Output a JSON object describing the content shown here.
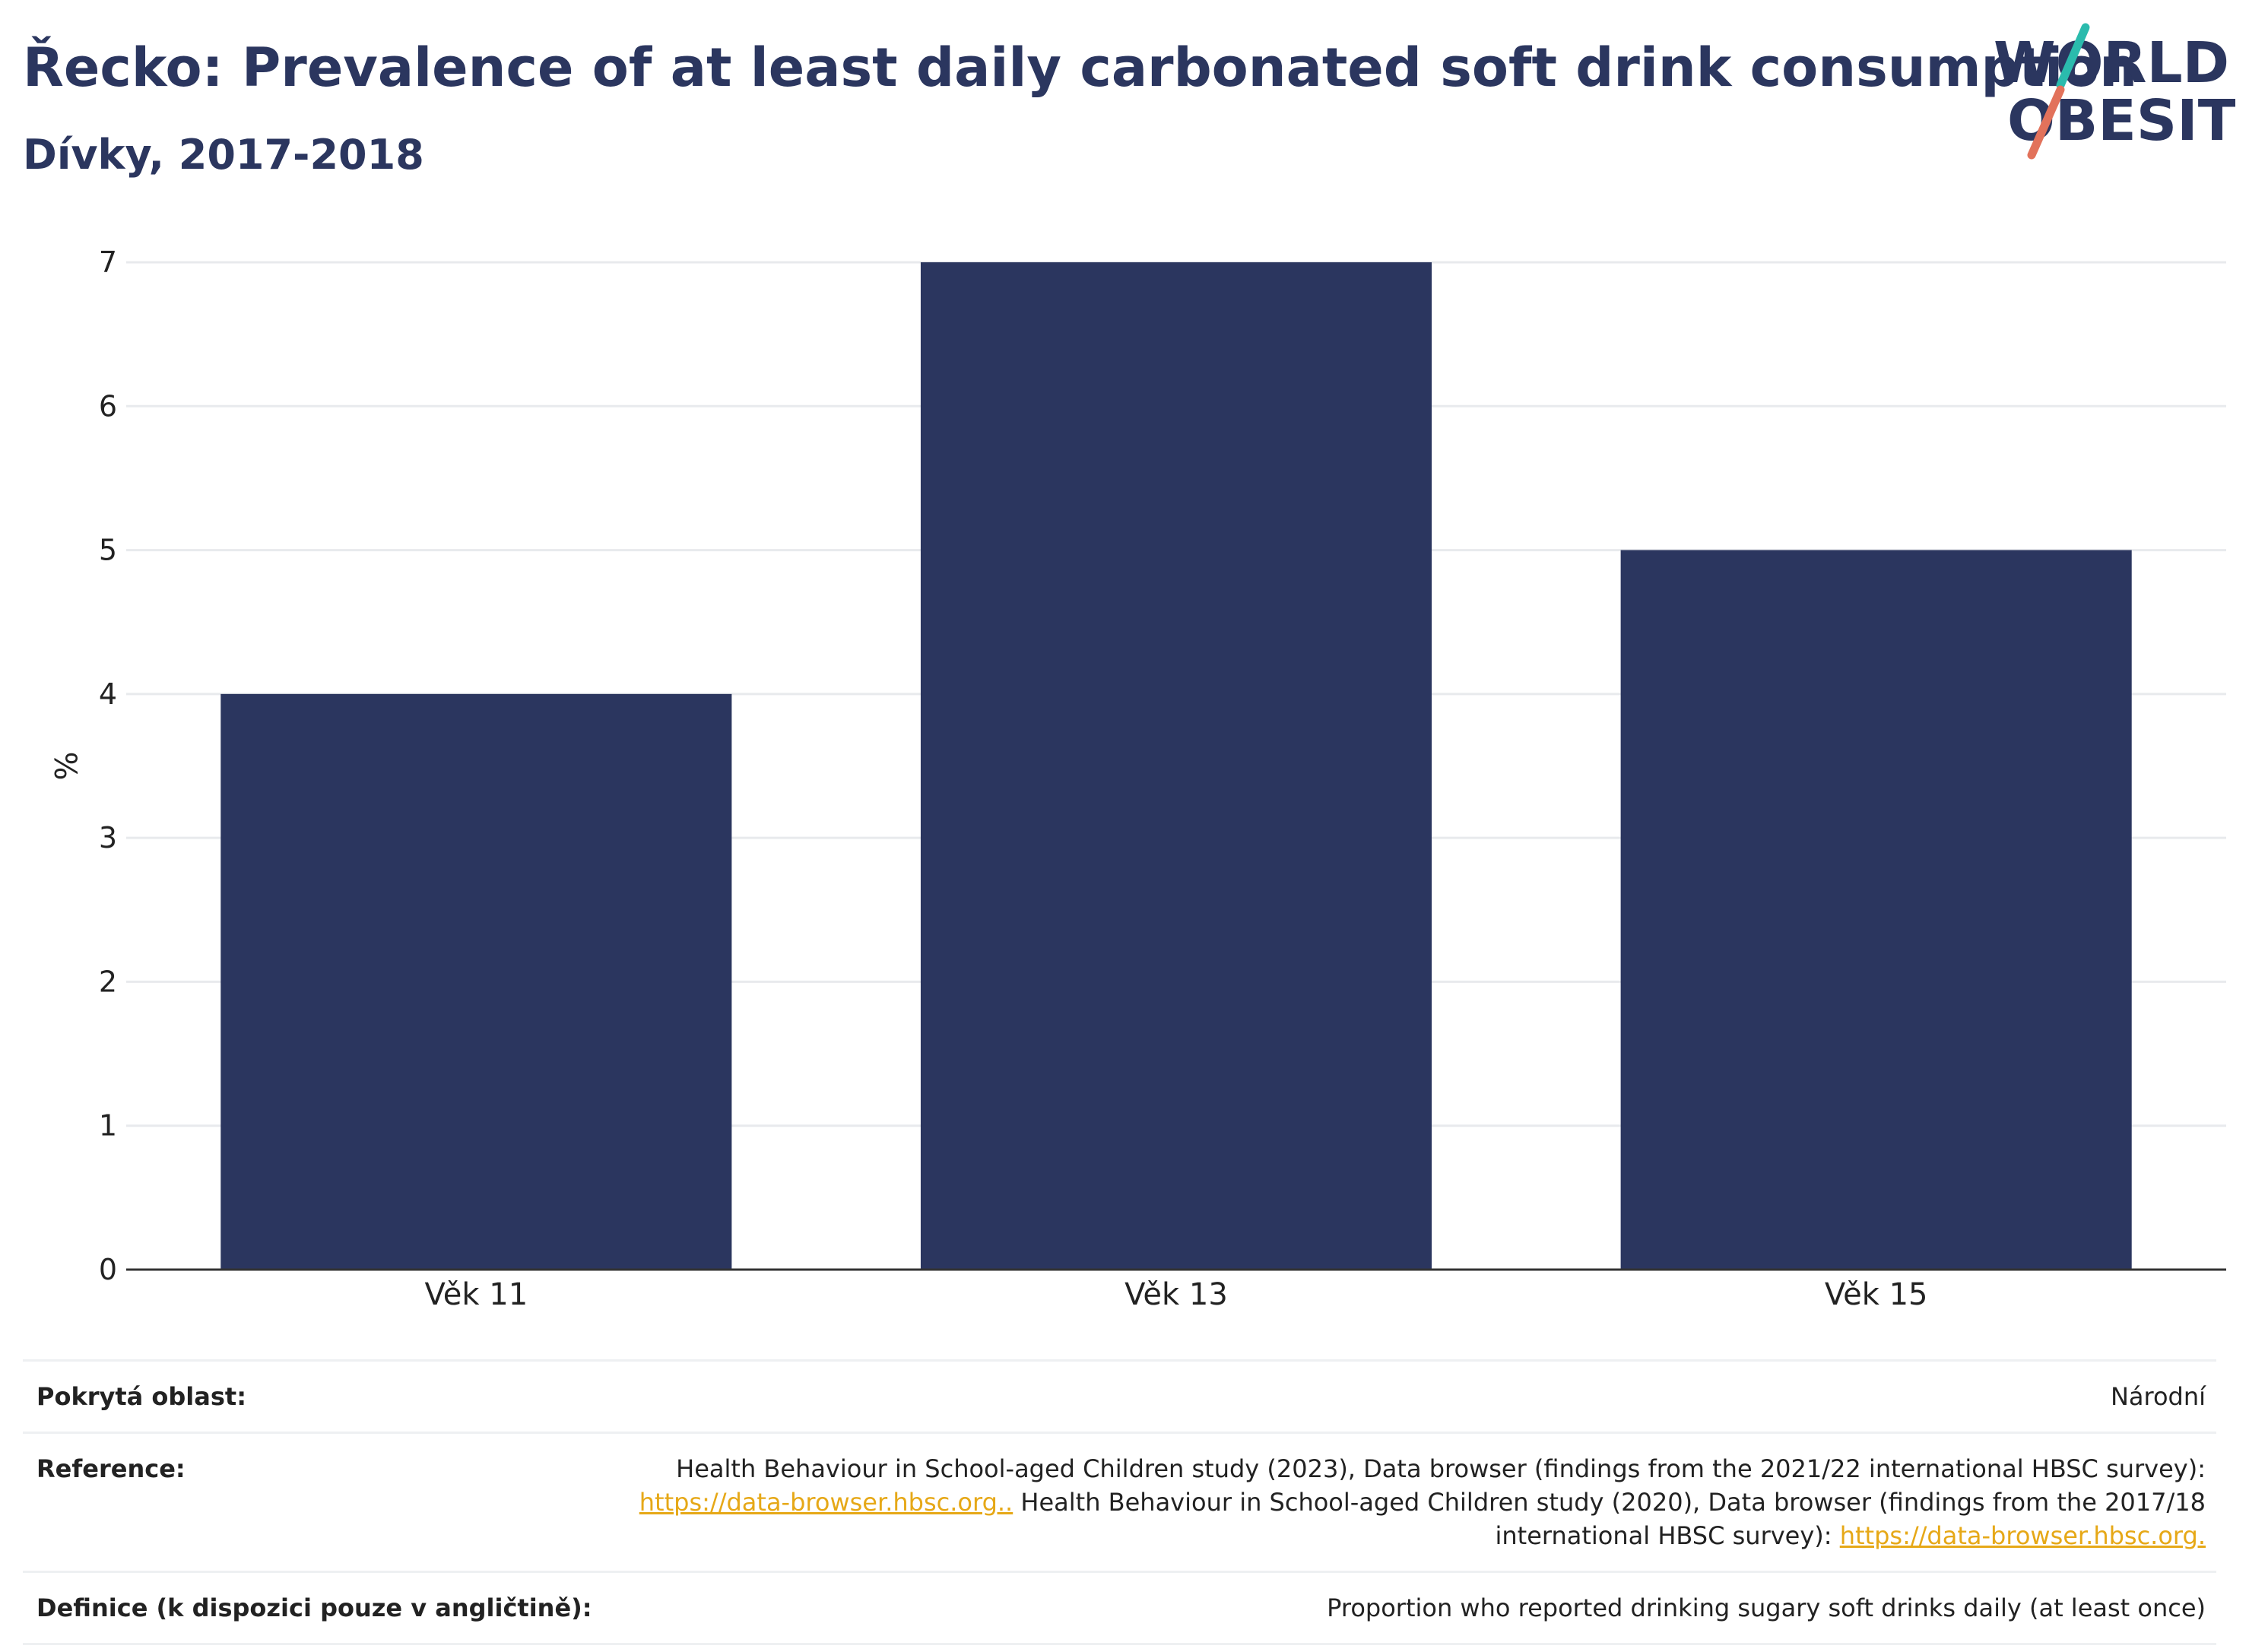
{
  "header": {
    "title": "Řecko: Prevalence of at least daily carbonated soft drink consumption",
    "subtitle": "Dívky, 2017-2018"
  },
  "logo": {
    "line1": "WORLD",
    "line2": "OBESITY",
    "slash_colors": [
      "#2bbbad",
      "#e2725b"
    ]
  },
  "chart_data": {
    "type": "bar",
    "categories": [
      "Věk 11",
      "Věk 13",
      "Věk 15"
    ],
    "values": [
      4,
      7,
      5
    ],
    "title": "",
    "xlabel": "",
    "ylabel": "%",
    "ylim": [
      0,
      7
    ],
    "yticks": [
      "0",
      "1",
      "2",
      "3",
      "4",
      "5",
      "6",
      "7"
    ],
    "grid": true,
    "bar_color": "#2b365f"
  },
  "info_table": {
    "rows": [
      {
        "label": "Pokrytá oblast:",
        "parts": [
          {
            "text": "Národní"
          }
        ]
      },
      {
        "label": "Reference:",
        "parts": [
          {
            "text": "Health Behaviour in School-aged Children study (2023), Data browser (findings from the 2021/22 international HBSC survey): "
          },
          {
            "link": "https://data-browser.hbsc.org.."
          },
          {
            "text": " Health Behaviour in School-aged Children study (2020), Data browser (findings from the 2017/18 international HBSC survey): "
          },
          {
            "link": "https://data-browser.hbsc.org."
          }
        ]
      },
      {
        "label": "Definice (k dispozici pouze v angličtině):",
        "parts": [
          {
            "text": "Proportion who reported drinking sugary soft drinks daily (at least once)"
          }
        ]
      }
    ]
  }
}
